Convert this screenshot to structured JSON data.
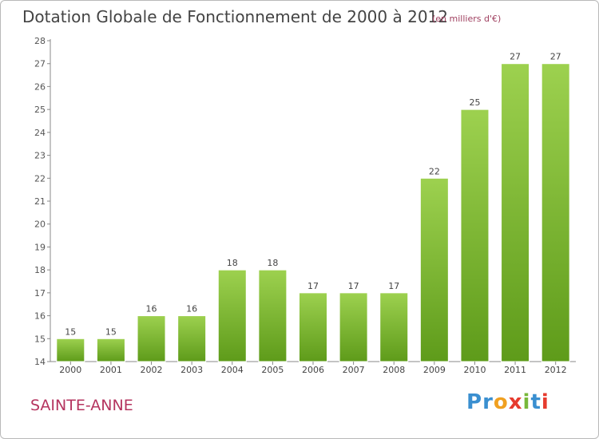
{
  "header": {
    "title": "Dotation Globale de Fonctionnement de 2000 à 2012",
    "unit": "(en milliers d'€)"
  },
  "footer": {
    "city": "SAINTE-ANNE",
    "logo_letters": [
      "P",
      "r",
      "o",
      "x",
      "i",
      "t",
      "i"
    ]
  },
  "colors": {
    "bar_light": "#9dd14f",
    "bar_dark": "#5e9b1a",
    "title": "#444444",
    "city": "#b5345f",
    "logo": [
      "#3a8fd0",
      "#3a8fd0",
      "#f0a020",
      "#e63b2e",
      "#78b83a",
      "#3a8fd0",
      "#e63b2e"
    ]
  },
  "chart_data": {
    "type": "bar",
    "categories": [
      "2000",
      "2001",
      "2002",
      "2003",
      "2004",
      "2005",
      "2006",
      "2007",
      "2008",
      "2009",
      "2010",
      "2011",
      "2012"
    ],
    "values": [
      15,
      15,
      16,
      16,
      18,
      18,
      17,
      17,
      17,
      22,
      25,
      27,
      27
    ],
    "ylim": [
      14,
      28
    ],
    "yticks": [
      14,
      15,
      16,
      17,
      18,
      19,
      20,
      21,
      22,
      23,
      24,
      25,
      26,
      27,
      28
    ],
    "grid": false,
    "data_labels": true
  }
}
